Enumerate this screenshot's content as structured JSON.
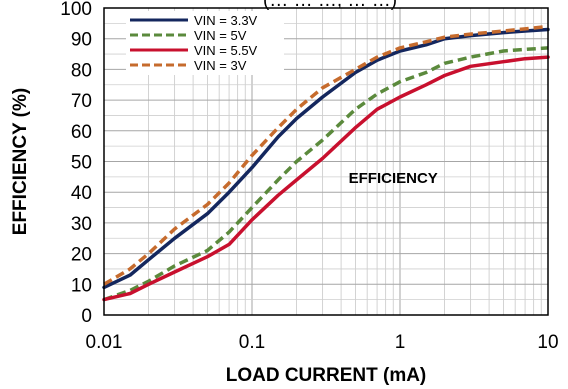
{
  "chart_data": {
    "type": "line",
    "xscale": "log",
    "xlim": [
      0.01,
      10
    ],
    "ylim": [
      0,
      100
    ],
    "xlabel": "LOAD CURRENT (mA)",
    "ylabel": "EFFICIENCY (%)",
    "annotation": "EFFICIENCY",
    "clipped_title": "(… … …, … …)",
    "grid": true,
    "legend_position": "top-left",
    "x_ticks": [
      "0.01",
      "0.1",
      "1",
      "10"
    ],
    "y_ticks": [
      "0",
      "10",
      "20",
      "30",
      "40",
      "50",
      "60",
      "70",
      "80",
      "90",
      "100"
    ],
    "series": [
      {
        "name": "VIN = 3.3V",
        "color": "#14275e",
        "style": "solid",
        "x": [
          0.01,
          0.015,
          0.02,
          0.03,
          0.05,
          0.07,
          0.1,
          0.15,
          0.2,
          0.3,
          0.5,
          0.7,
          1,
          1.5,
          2,
          3,
          5,
          7,
          10
        ],
        "y": [
          9,
          13,
          18,
          25,
          33,
          40,
          48,
          58,
          64,
          71,
          79,
          83,
          86,
          88,
          90,
          91,
          92,
          92.5,
          93
        ]
      },
      {
        "name": "VIN = 5V",
        "color": "#5b8a3c",
        "style": "dashed",
        "x": [
          0.01,
          0.015,
          0.02,
          0.03,
          0.05,
          0.07,
          0.1,
          0.15,
          0.2,
          0.3,
          0.5,
          0.7,
          1,
          1.5,
          2,
          3,
          5,
          7,
          10
        ],
        "y": [
          5,
          8,
          11,
          16,
          21,
          27,
          35,
          44,
          50,
          57,
          67,
          72,
          76,
          79,
          82,
          84,
          86,
          86.5,
          87
        ]
      },
      {
        "name": "VIN = 5.5V",
        "color": "#c8102e",
        "style": "solid",
        "x": [
          0.01,
          0.015,
          0.02,
          0.03,
          0.05,
          0.07,
          0.1,
          0.15,
          0.2,
          0.3,
          0.5,
          0.7,
          1,
          1.5,
          2,
          3,
          5,
          7,
          10
        ],
        "y": [
          5,
          7,
          10,
          14,
          19,
          23,
          31,
          39,
          44,
          51,
          61,
          67,
          71,
          75,
          78,
          81,
          82.5,
          83.5,
          84
        ]
      },
      {
        "name": "VIN = 3V",
        "color": "#c66b2d",
        "style": "dashed",
        "x": [
          0.01,
          0.015,
          0.02,
          0.03,
          0.05,
          0.07,
          0.1,
          0.15,
          0.2,
          0.3,
          0.5,
          0.7,
          1,
          1.5,
          2,
          3,
          5,
          7,
          10
        ],
        "y": [
          10,
          15,
          20,
          28,
          36,
          43,
          52,
          61,
          67,
          74,
          80,
          84,
          87,
          89,
          90.5,
          91.5,
          92.5,
          93.2,
          94
        ]
      }
    ]
  }
}
